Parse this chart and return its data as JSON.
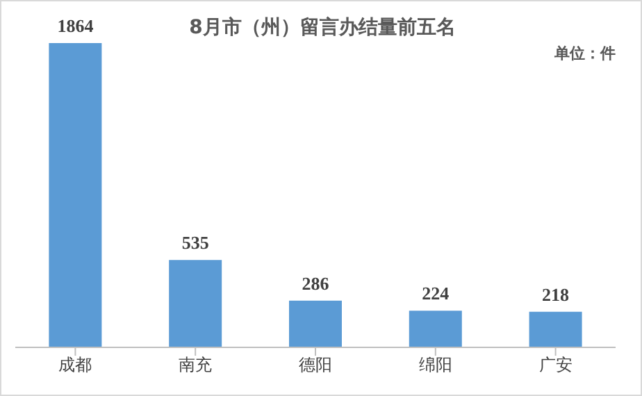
{
  "chart_data": {
    "type": "bar",
    "title": "8月市（州）留言办结量前五名",
    "annotations": [
      "单位：件"
    ],
    "categories": [
      "成都",
      "南充",
      "德阳",
      "绵阳",
      "广安"
    ],
    "values": [
      1864,
      535,
      286,
      224,
      218
    ],
    "color": "#5b9bd5",
    "data_labels": true,
    "grid": false
  }
}
